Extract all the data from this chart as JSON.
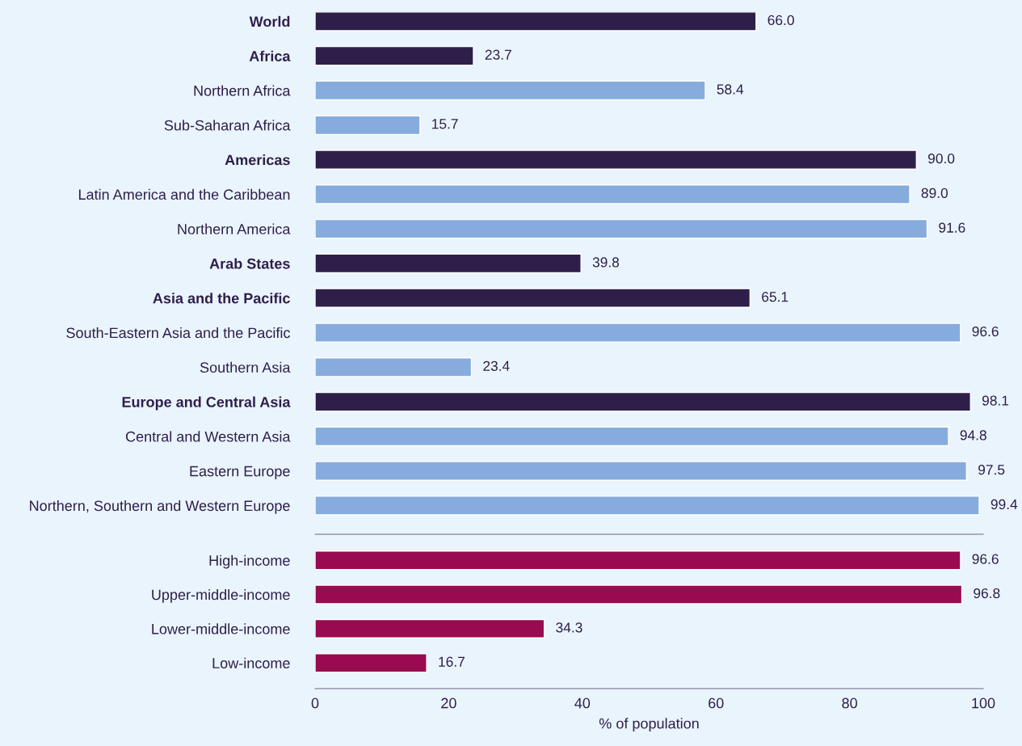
{
  "chart_data": [
    {
      "type": "bar",
      "orientation": "horizontal",
      "categories": [
        "World",
        "Africa",
        "Northern Africa",
        "Sub-Saharan Africa",
        "Americas",
        "Latin America and the Caribbean",
        "Northern America",
        "Arab States",
        "Asia and the Pacific",
        "South-Eastern Asia and the Pacific",
        "Southern Asia",
        "Europe and Central Asia",
        "Central and Western Asia",
        "Eastern Europe",
        "Northern, Southern and Western Europe"
      ],
      "values": [
        66.0,
        23.7,
        58.4,
        15.7,
        90.0,
        89.0,
        91.6,
        39.8,
        65.1,
        96.6,
        23.4,
        98.1,
        94.8,
        97.5,
        99.4
      ],
      "colors": [
        "#2e1f4a",
        "#2e1f4a",
        "#86acde",
        "#86acde",
        "#2e1f4a",
        "#86acde",
        "#86acde",
        "#2e1f4a",
        "#2e1f4a",
        "#86acde",
        "#86acde",
        "#2e1f4a",
        "#86acde",
        "#86acde",
        "#86acde"
      ],
      "value_labels": [
        "66.0",
        "23.7",
        "58.4",
        "15.7",
        "90.0",
        "89.0",
        "91.6",
        "39.8",
        "65.1",
        "96.6",
        "23.4",
        "98.1",
        "94.8",
        "97.5",
        "99.4"
      ],
      "xlim": [
        0,
        100
      ],
      "tick_labels": "y"
    },
    {
      "type": "bar",
      "orientation": "horizontal",
      "categories": [
        "High-income",
        "Upper-middle-income",
        "Lower-middle-income",
        "Low-income"
      ],
      "values": [
        96.6,
        96.8,
        34.3,
        16.7
      ],
      "colors": [
        "#990a50",
        "#990a50",
        "#990a50",
        "#990a50"
      ],
      "xlim": [
        0,
        100
      ],
      "xticks": [
        0,
        20,
        40,
        60,
        80,
        100
      ],
      "xlabel": "% of population",
      "value_labels": [
        "96.6",
        "96.8",
        "34.3",
        "16.7"
      ]
    }
  ]
}
